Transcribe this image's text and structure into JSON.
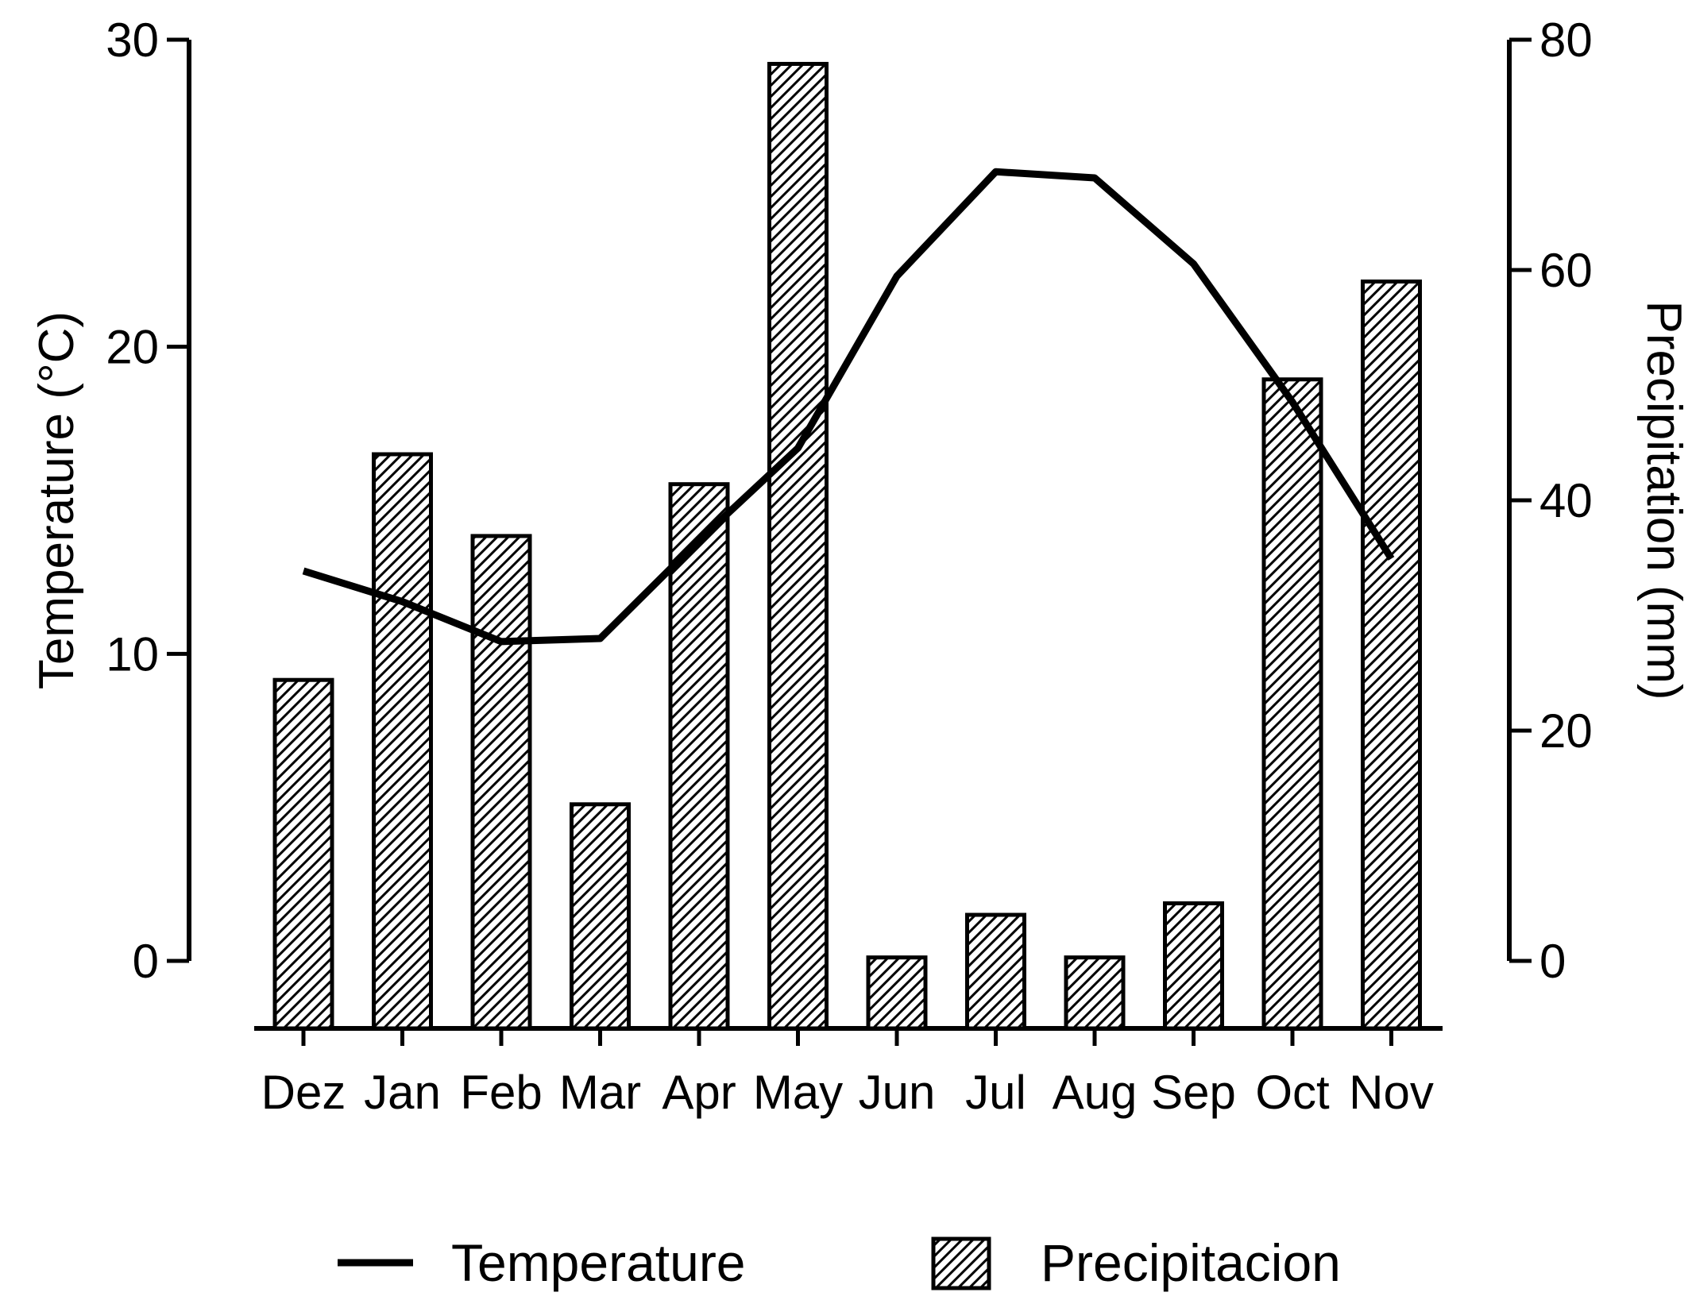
{
  "chart_data": {
    "type": "bar+line",
    "categories": [
      "Dez",
      "Jan",
      "Feb",
      "Mar",
      "Apr",
      "May",
      "Jun",
      "Jul",
      "Aug",
      "Sep",
      "Oct",
      "Nov"
    ],
    "series": [
      {
        "name": "Precipitacion",
        "type": "bar",
        "axis": "right",
        "pattern": "diagonal-hatch",
        "values": [
          24.4,
          44.0,
          36.9,
          13.6,
          41.4,
          77.9,
          0.3,
          4.0,
          0.3,
          5.0,
          50.5,
          59.0
        ]
      },
      {
        "name": "Temperature",
        "type": "line",
        "axis": "left",
        "values": [
          12.7,
          11.7,
          10.4,
          10.5,
          13.7,
          16.7,
          22.3,
          25.7,
          25.5,
          22.7,
          18.2,
          13.1
        ]
      }
    ],
    "yaxis_left": {
      "label": "Temperature (°C)",
      "range": [
        0,
        30
      ],
      "ticks": [
        "0",
        "10",
        "20",
        "30"
      ]
    },
    "yaxis_right": {
      "label": "Precipitation (mm)",
      "range": [
        0,
        80
      ],
      "ticks": [
        "0",
        "20",
        "40",
        "60",
        "80"
      ]
    },
    "xlabel": "",
    "title": "",
    "grid": false,
    "legend": {
      "placement": "bottom-center",
      "line_label": "Temperature",
      "bar_label": "Precipitacion"
    }
  }
}
